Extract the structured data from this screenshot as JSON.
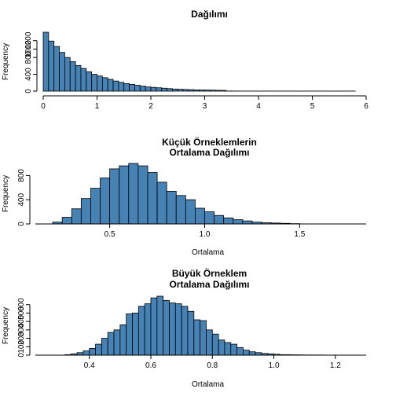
{
  "chart_data": [
    {
      "type": "bar",
      "title": [
        "Dağılımı"
      ],
      "xlabel": "",
      "ylabel": "Frequency",
      "xlim": [
        0,
        6
      ],
      "ylim": [
        0,
        1400
      ],
      "xticks": [
        0,
        1,
        2,
        3,
        4,
        5,
        6
      ],
      "yticks": [
        0,
        400,
        800,
        1000,
        1200
      ],
      "bin_start": 0,
      "bin_width": 0.1,
      "values": [
        1400,
        1190,
        1060,
        920,
        800,
        700,
        610,
        540,
        460,
        400,
        360,
        320,
        280,
        240,
        210,
        180,
        160,
        140,
        120,
        100,
        90,
        80,
        70,
        60,
        50,
        45,
        40,
        35,
        30,
        28,
        26,
        24,
        20,
        18,
        4,
        3,
        2,
        2,
        2,
        2,
        2,
        2,
        2,
        2,
        2,
        2,
        2,
        2,
        2,
        2,
        2,
        2,
        2,
        2,
        2,
        2,
        2,
        2
      ],
      "fill": "#4682b4",
      "grid": false
    },
    {
      "type": "bar",
      "title": [
        "Küçük Örneklemlerin",
        "Ortalama Dağılımı"
      ],
      "xlabel": "Ortalama",
      "ylabel": "Frequency",
      "xlim": [
        0.15,
        1.85
      ],
      "ylim": [
        0,
        1000
      ],
      "xticks": [
        0.5,
        1.0,
        1.5
      ],
      "xtick_labels": [
        "0.5",
        "1.0",
        "1.5"
      ],
      "yticks": [
        0,
        400,
        800
      ],
      "bin_start": 0.2,
      "bin_width": 0.05,
      "values": [
        30,
        110,
        250,
        420,
        590,
        760,
        910,
        960,
        1000,
        960,
        850,
        690,
        540,
        470,
        400,
        260,
        200,
        140,
        100,
        70,
        50,
        30,
        20,
        15,
        10,
        5
      ],
      "fill": "#4682b4",
      "grid": false
    },
    {
      "type": "bar",
      "title": [
        "Büyük Örneklem",
        "Ortalama Dağılımı"
      ],
      "xlabel": "Ortalama",
      "ylabel": "Frequency",
      "xlim": [
        0.25,
        1.3
      ],
      "ylim": [
        0,
        700
      ],
      "xticks": [
        0.4,
        0.6,
        0.8,
        1.0,
        1.2
      ],
      "xtick_labels": [
        "0.4",
        "0.6",
        "0.8",
        "1.0",
        "1.2"
      ],
      "yticks": [
        0,
        100,
        200,
        300,
        400,
        500,
        600
      ],
      "bin_start": 0.32,
      "bin_width": 0.02,
      "values": [
        5,
        15,
        30,
        50,
        80,
        130,
        200,
        270,
        300,
        360,
        490,
        500,
        580,
        610,
        680,
        700,
        650,
        620,
        610,
        580,
        520,
        420,
        410,
        300,
        250,
        180,
        150,
        130,
        90,
        60,
        40,
        30,
        20,
        15,
        10,
        5,
        5,
        4,
        3,
        2,
        2,
        2
      ],
      "fill": "#4682b4",
      "grid": false
    }
  ]
}
